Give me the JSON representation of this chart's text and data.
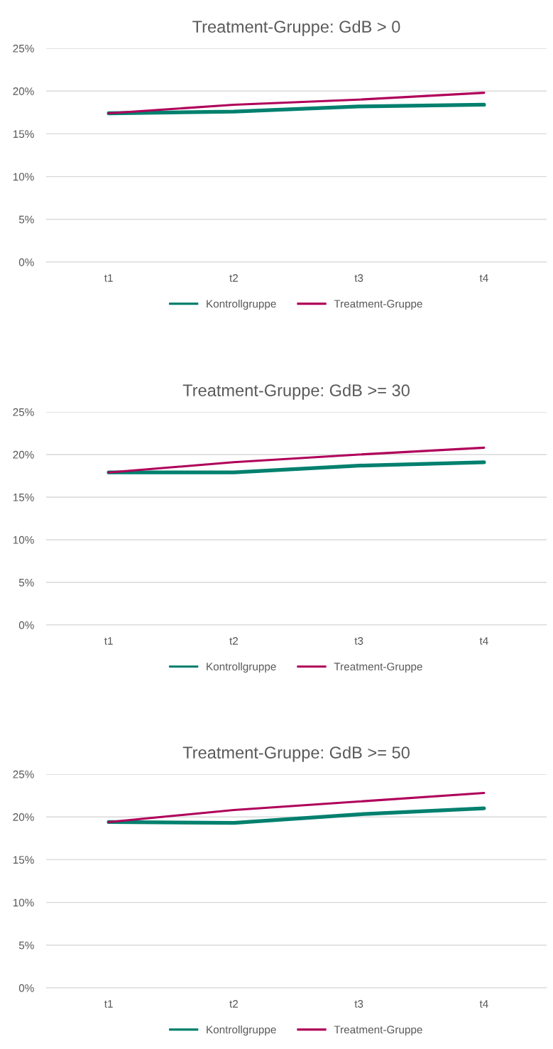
{
  "chart_data": [
    {
      "type": "line",
      "title": "Treatment-Gruppe: GdB > 0",
      "categories": [
        "t1",
        "t2",
        "t3",
        "t4"
      ],
      "series": [
        {
          "name": "Kontrollgruppe",
          "color": "#00806e",
          "values": [
            17.4,
            17.6,
            18.2,
            18.4
          ]
        },
        {
          "name": "Treatment-Gruppe",
          "color": "#b0005a",
          "values": [
            17.4,
            18.4,
            19.0,
            19.8
          ]
        }
      ],
      "ylim": [
        0,
        25
      ],
      "yticks": [
        {
          "value": 0,
          "label": "0%"
        },
        {
          "value": 5,
          "label": "5%"
        },
        {
          "value": 10,
          "label": "10%"
        },
        {
          "value": 15,
          "label": "15%"
        },
        {
          "value": 20,
          "label": "20%"
        },
        {
          "value": 25,
          "label": "25%"
        }
      ],
      "grid": "y",
      "legend": "bottom",
      "marker": "none",
      "line_style": "solid"
    },
    {
      "type": "line",
      "title": "Treatment-Gruppe: GdB >= 30",
      "categories": [
        "t1",
        "t2",
        "t3",
        "t4"
      ],
      "series": [
        {
          "name": "Kontrollgruppe",
          "color": "#00806e",
          "values": [
            17.9,
            17.9,
            18.7,
            19.1
          ]
        },
        {
          "name": "Treatment-Gruppe",
          "color": "#b0005a",
          "values": [
            17.9,
            19.1,
            20.0,
            20.8
          ]
        }
      ],
      "ylim": [
        0,
        25
      ],
      "yticks": [
        {
          "value": 0,
          "label": "0%"
        },
        {
          "value": 5,
          "label": "5%"
        },
        {
          "value": 10,
          "label": "10%"
        },
        {
          "value": 15,
          "label": "15%"
        },
        {
          "value": 20,
          "label": "20%"
        },
        {
          "value": 25,
          "label": "25%"
        }
      ],
      "grid": "y",
      "legend": "bottom",
      "marker": "none",
      "line_style": "solid"
    },
    {
      "type": "line",
      "title": "Treatment-Gruppe: GdB >= 50",
      "categories": [
        "t1",
        "t2",
        "t3",
        "t4"
      ],
      "series": [
        {
          "name": "Kontrollgruppe",
          "color": "#00806e",
          "values": [
            19.4,
            19.3,
            20.3,
            21.0
          ]
        },
        {
          "name": "Treatment-Gruppe",
          "color": "#b0005a",
          "values": [
            19.4,
            20.8,
            21.8,
            22.8
          ]
        }
      ],
      "ylim": [
        0,
        25
      ],
      "yticks": [
        {
          "value": 0,
          "label": "0%"
        },
        {
          "value": 5,
          "label": "5%"
        },
        {
          "value": 10,
          "label": "10%"
        },
        {
          "value": 15,
          "label": "15%"
        },
        {
          "value": 20,
          "label": "20%"
        },
        {
          "value": 25,
          "label": "25%"
        }
      ],
      "grid": "y",
      "legend": "bottom",
      "marker": "none",
      "line_style": "solid"
    }
  ]
}
